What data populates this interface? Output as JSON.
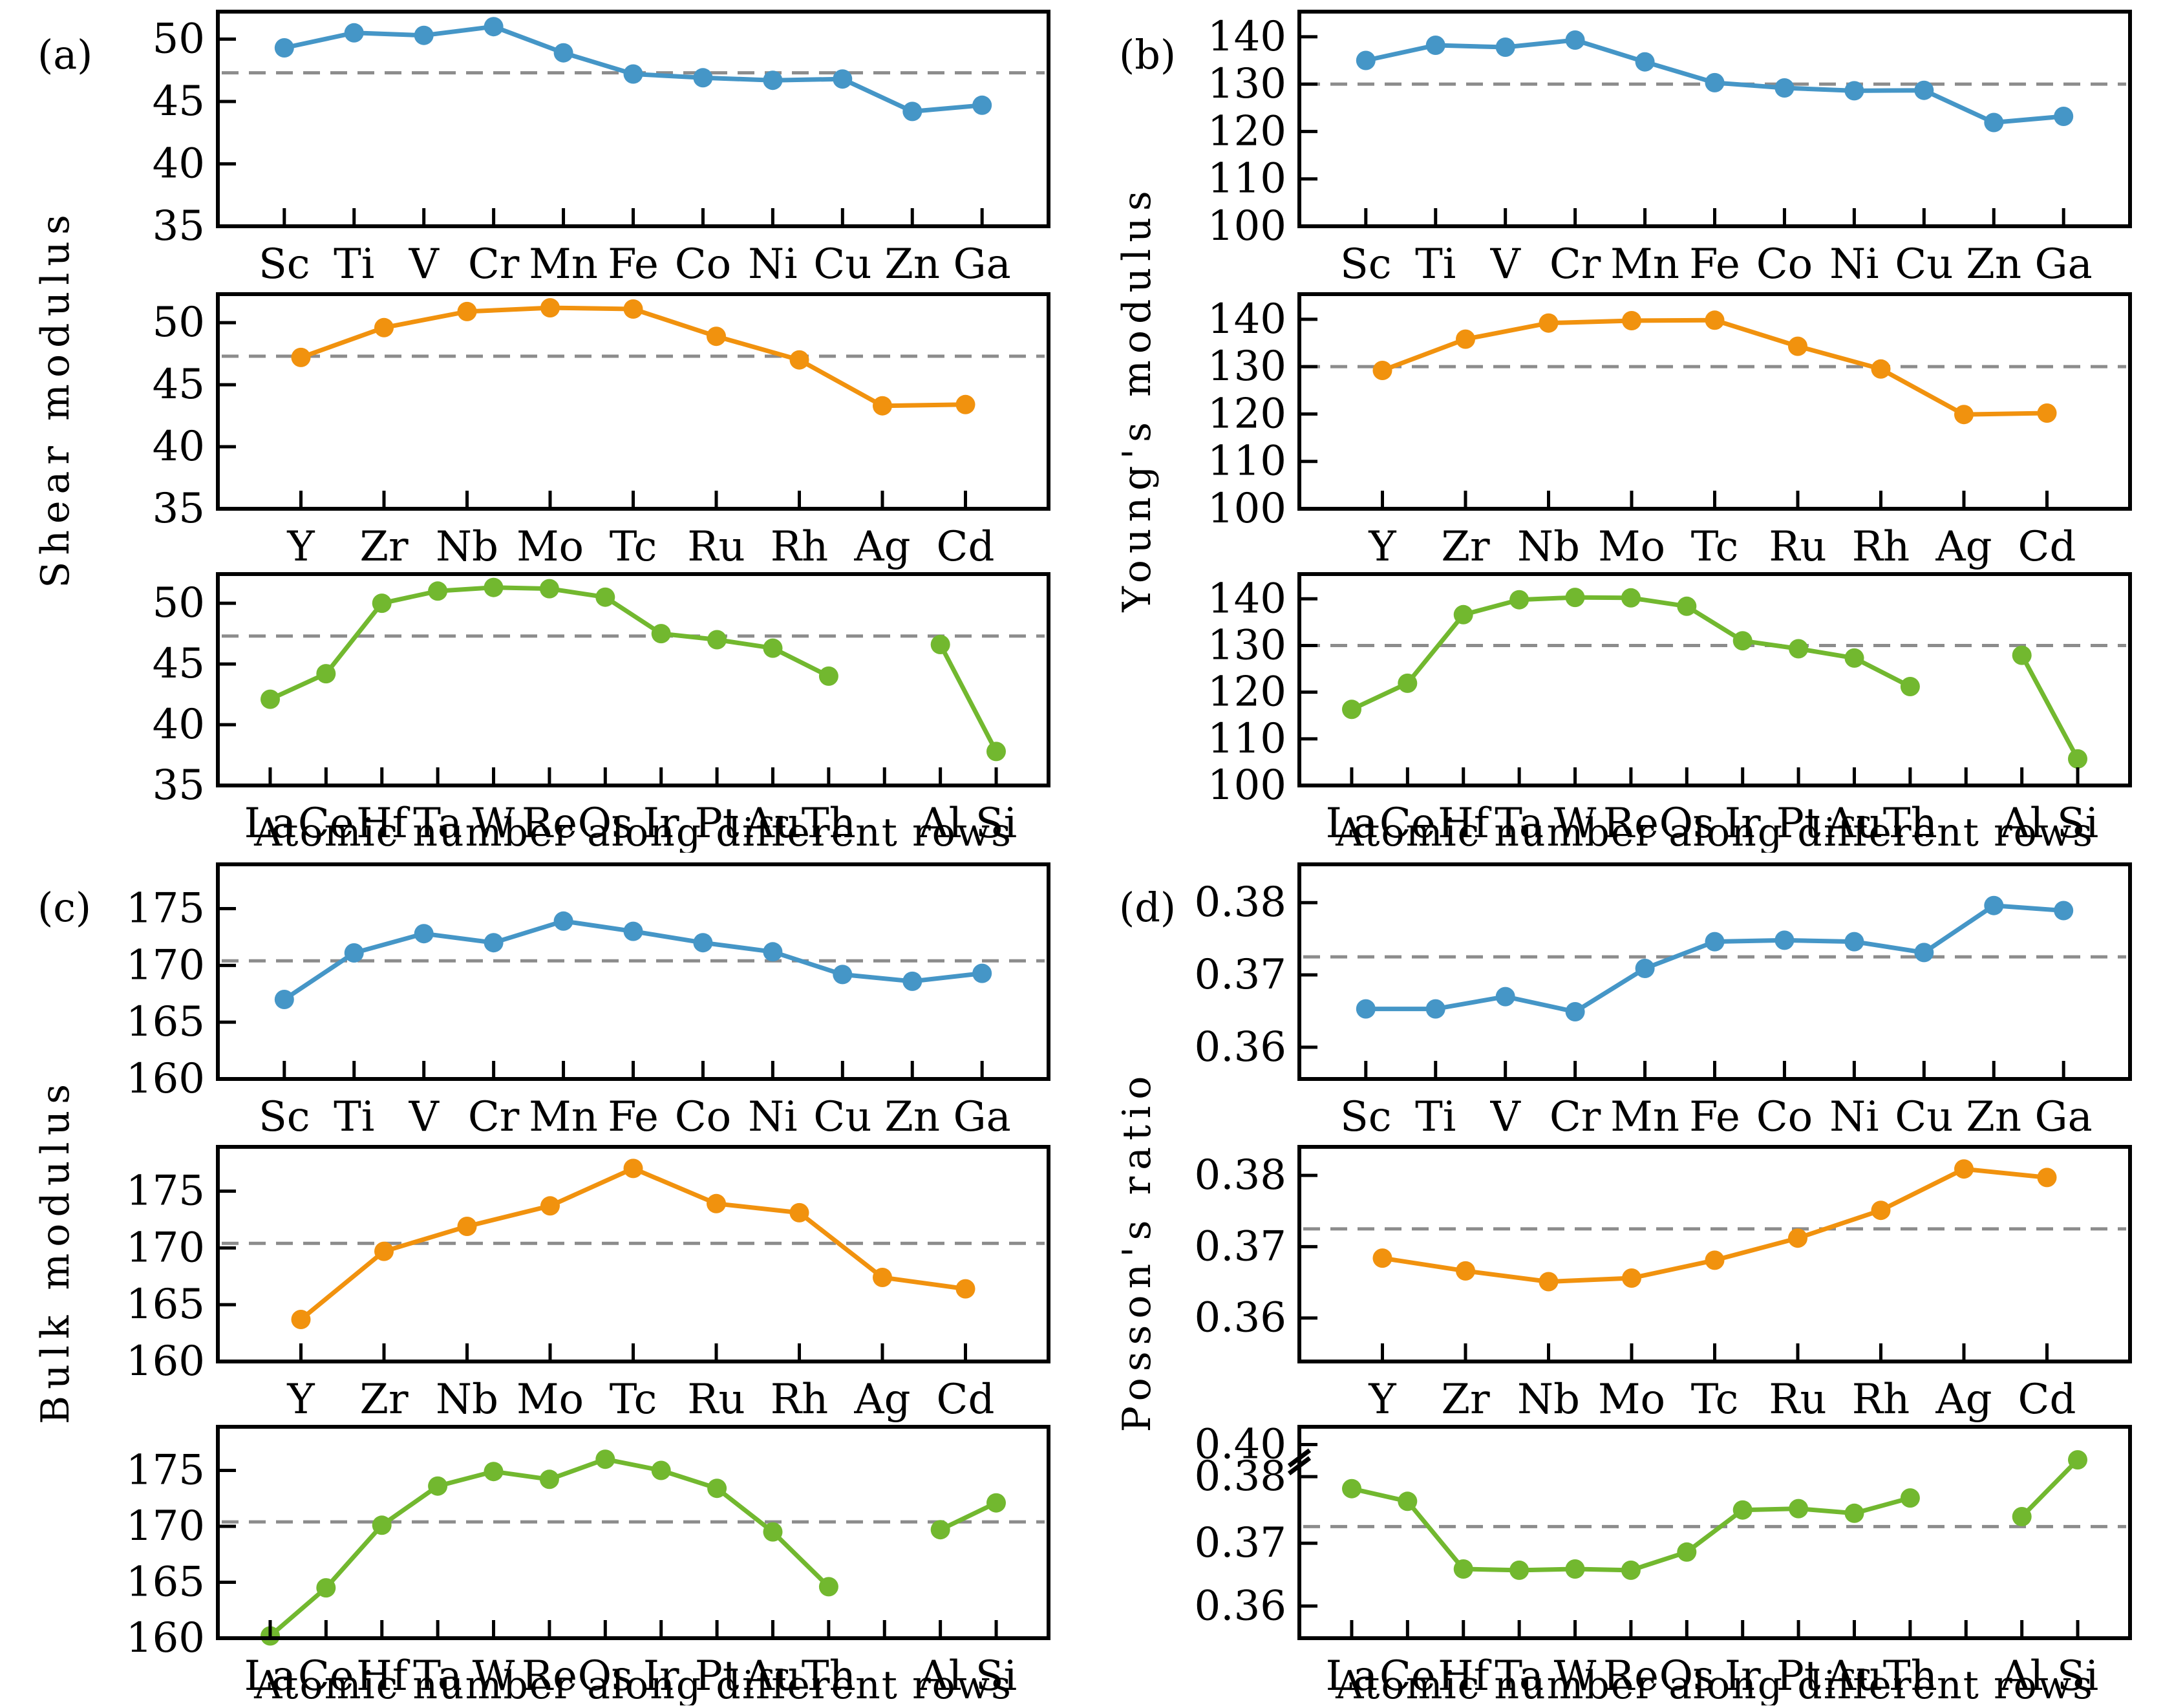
{
  "figure": {
    "xlabel": "Atomic number along different rows",
    "colors": {
      "row1": "#4596c7",
      "row2": "#f1920e",
      "row3": "#72b82f",
      "ref_line": "#8c8c8c",
      "axis": "#000000"
    }
  },
  "chart_data": [
    {
      "type": "line",
      "panel_key": "a",
      "panel_label": "(a)",
      "ylabel": "Shear modulus",
      "xlabel": "Atomic number along different rows",
      "legend": "none",
      "grid": "off",
      "rows": [
        {
          "id": "3d-row",
          "color_key": "row1",
          "x_pad": 0.08,
          "categories": [
            "Sc",
            "Ti",
            "V",
            "Cr",
            "Mn",
            "Fe",
            "Co",
            "Ni",
            "Cu",
            "Zn",
            "Ga"
          ],
          "values": [
            49.3,
            50.5,
            50.3,
            51.0,
            48.9,
            47.2,
            46.9,
            46.7,
            46.8,
            44.2,
            44.7
          ],
          "ref_line": 47.3,
          "ylim": [
            35,
            52.2
          ],
          "yticks": [
            "35",
            "40",
            "45",
            "50"
          ]
        },
        {
          "id": "4d-row",
          "color_key": "row2",
          "x_pad": 0.1,
          "categories": [
            "Y",
            "Zr",
            "Nb",
            "Mo",
            "Tc",
            "Ru",
            "Rh",
            "Ag",
            "Cd"
          ],
          "values": [
            47.2,
            49.6,
            50.9,
            51.2,
            51.1,
            48.9,
            47.0,
            43.3,
            43.4
          ],
          "ref_line": 47.3,
          "ylim": [
            35,
            52.3
          ],
          "yticks": [
            "35",
            "40",
            "45",
            "50"
          ]
        },
        {
          "id": "5d-row",
          "color_key": "row3",
          "x_pad": 0.063,
          "slot_count": 14,
          "slots": [
            0,
            1,
            2,
            3,
            4,
            5,
            6,
            7,
            8,
            9,
            10,
            12,
            13
          ],
          "categories": [
            "La",
            "Ce",
            "Hf",
            "Ta",
            "W",
            "Re",
            "Os",
            "Ir",
            "Pt",
            "Au",
            "Th",
            "Al",
            "Si"
          ],
          "values": [
            42.1,
            44.2,
            50.0,
            51.0,
            51.3,
            51.2,
            50.5,
            47.5,
            47.0,
            46.3,
            44.0,
            46.6,
            37.8
          ],
          "ref_line": 47.3,
          "ylim": [
            35,
            52.4
          ],
          "yticks": [
            "35",
            "40",
            "45",
            "50"
          ]
        }
      ]
    },
    {
      "type": "line",
      "panel_key": "b",
      "panel_label": "(b)",
      "ylabel": "Young's modulus",
      "xlabel": "Atomic number along different rows",
      "legend": "none",
      "grid": "off",
      "rows": [
        {
          "id": "3d-row",
          "color_key": "row1",
          "x_pad": 0.08,
          "categories": [
            "Sc",
            "Ti",
            "V",
            "Cr",
            "Mn",
            "Fe",
            "Co",
            "Ni",
            "Cu",
            "Zn",
            "Ga"
          ],
          "values": [
            135.0,
            138.2,
            137.8,
            139.3,
            134.7,
            130.3,
            129.2,
            128.6,
            128.7,
            121.9,
            123.2
          ],
          "ref_line": 130.0,
          "ylim": [
            100,
            145.3
          ],
          "yticks": [
            "100",
            "110",
            "120",
            "130",
            "140"
          ]
        },
        {
          "id": "4d-row",
          "color_key": "row2",
          "x_pad": 0.1,
          "categories": [
            "Y",
            "Zr",
            "Nb",
            "Mo",
            "Tc",
            "Ru",
            "Rh",
            "Ag",
            "Cd"
          ],
          "values": [
            129.2,
            135.8,
            139.2,
            139.7,
            139.8,
            134.3,
            129.5,
            119.9,
            120.2
          ],
          "ref_line": 130.0,
          "ylim": [
            100,
            145.3
          ],
          "yticks": [
            "100",
            "110",
            "120",
            "130",
            "140"
          ]
        },
        {
          "id": "5d-row",
          "color_key": "row3",
          "x_pad": 0.063,
          "slot_count": 14,
          "slots": [
            0,
            1,
            2,
            3,
            4,
            5,
            6,
            7,
            8,
            9,
            10,
            12,
            13
          ],
          "categories": [
            "La",
            "Ce",
            "Hf",
            "Ta",
            "W",
            "Re",
            "Os",
            "Ir",
            "Pt",
            "Au",
            "Th",
            "Al",
            "Si"
          ],
          "values": [
            116.3,
            121.9,
            136.6,
            139.8,
            140.3,
            140.2,
            138.4,
            131.0,
            129.3,
            127.3,
            121.2,
            127.9,
            105.7
          ],
          "ref_line": 130.0,
          "ylim": [
            100,
            145.3
          ],
          "yticks": [
            "100",
            "110",
            "120",
            "130",
            "140"
          ]
        }
      ]
    },
    {
      "type": "line",
      "panel_key": "c",
      "panel_label": "(c)",
      "ylabel": "Bulk modulus",
      "xlabel": "Atomic number along different rows",
      "legend": "none",
      "grid": "off",
      "rows": [
        {
          "id": "3d-row",
          "color_key": "row1",
          "x_pad": 0.08,
          "categories": [
            "Sc",
            "Ti",
            "V",
            "Cr",
            "Mn",
            "Fe",
            "Co",
            "Ni",
            "Cu",
            "Zn",
            "Ga"
          ],
          "values": [
            167.0,
            171.1,
            172.8,
            172.0,
            173.9,
            173.0,
            172.0,
            171.2,
            169.2,
            168.6,
            169.3
          ],
          "ref_line": 170.4,
          "ylim": [
            160,
            178.9
          ],
          "yticks": [
            "160",
            "165",
            "170",
            "175"
          ]
        },
        {
          "id": "4d-row",
          "color_key": "row2",
          "x_pad": 0.1,
          "categories": [
            "Y",
            "Zr",
            "Nb",
            "Mo",
            "Tc",
            "Ru",
            "Rh",
            "Ag",
            "Cd"
          ],
          "values": [
            163.7,
            169.7,
            171.9,
            173.7,
            177.0,
            173.9,
            173.1,
            167.4,
            166.4
          ],
          "ref_line": 170.4,
          "ylim": [
            160,
            178.9
          ],
          "yticks": [
            "160",
            "165",
            "170",
            "175"
          ]
        },
        {
          "id": "5d-row",
          "color_key": "row3",
          "x_pad": 0.063,
          "slot_count": 14,
          "slots": [
            0,
            1,
            2,
            3,
            4,
            5,
            6,
            7,
            8,
            9,
            10,
            12,
            13
          ],
          "categories": [
            "La",
            "Ce",
            "Hf",
            "Ta",
            "W",
            "Re",
            "Os",
            "Ir",
            "Pt",
            "Au",
            "Th",
            "Al",
            "Si"
          ],
          "values": [
            160.2,
            164.5,
            170.1,
            173.6,
            174.9,
            174.2,
            176.0,
            175.0,
            173.4,
            169.5,
            164.6,
            169.7,
            172.1
          ],
          "ref_line": 170.4,
          "ylim": [
            160,
            178.9
          ],
          "yticks": [
            "160",
            "165",
            "170",
            "175"
          ]
        }
      ]
    },
    {
      "type": "line",
      "panel_key": "d",
      "panel_label": "(d)",
      "ylabel": "Posson's ratio",
      "xlabel": "Atomic number along different rows",
      "legend": "none",
      "grid": "off",
      "rows": [
        {
          "id": "3d-row",
          "color_key": "row1",
          "x_pad": 0.08,
          "categories": [
            "Sc",
            "Ti",
            "V",
            "Cr",
            "Mn",
            "Fe",
            "Co",
            "Ni",
            "Cu",
            "Zn",
            "Ga"
          ],
          "values": [
            0.3653,
            0.3653,
            0.367,
            0.3649,
            0.3709,
            0.3746,
            0.3748,
            0.3746,
            0.3731,
            0.3796,
            0.3789
          ],
          "ref_line": 0.3725,
          "ylim": [
            0.3556,
            0.3853
          ],
          "yticks": [
            "0.36",
            "0.37",
            "0.38"
          ]
        },
        {
          "id": "4d-row",
          "color_key": "row2",
          "x_pad": 0.1,
          "categories": [
            "Y",
            "Zr",
            "Nb",
            "Mo",
            "Tc",
            "Ru",
            "Rh",
            "Ag",
            "Cd"
          ],
          "values": [
            0.3684,
            0.3666,
            0.3651,
            0.3656,
            0.3681,
            0.3712,
            0.3751,
            0.3809,
            0.3797
          ],
          "ref_line": 0.3725,
          "ylim": [
            0.3539,
            0.384
          ],
          "yticks": [
            "0.36",
            "0.37",
            "0.38"
          ]
        },
        {
          "id": "5d-row",
          "color_key": "row3",
          "x_pad": 0.063,
          "slot_count": 14,
          "slots": [
            0,
            1,
            2,
            3,
            4,
            5,
            6,
            7,
            8,
            9,
            10,
            12,
            13
          ],
          "categories": [
            "La",
            "Ce",
            "Hf",
            "Ta",
            "W",
            "Re",
            "Os",
            "Ir",
            "Pt",
            "Au",
            "Th",
            "Al",
            "Si"
          ],
          "values": [
            0.3782,
            0.3763,
            0.3659,
            0.3657,
            0.3659,
            0.3657,
            0.3686,
            0.375,
            0.3752,
            0.3745,
            0.3768,
            0.374,
            0.3905
          ],
          "ref_line": 0.3725,
          "y_anchors": [
            [
              0.3551,
              1.0
            ],
            [
              0.36,
              0.848
            ],
            [
              0.37,
              0.551
            ],
            [
              0.38,
              0.236
            ],
            [
              0.4,
              0.084
            ],
            [
              0.4046,
              0.0
            ]
          ],
          "yticks": [
            "0.36",
            "0.37",
            "0.38",
            "0.40"
          ],
          "axis_break": {
            "between": [
              "0.38",
              "0.40"
            ],
            "frac": 0.16
          }
        }
      ]
    }
  ]
}
